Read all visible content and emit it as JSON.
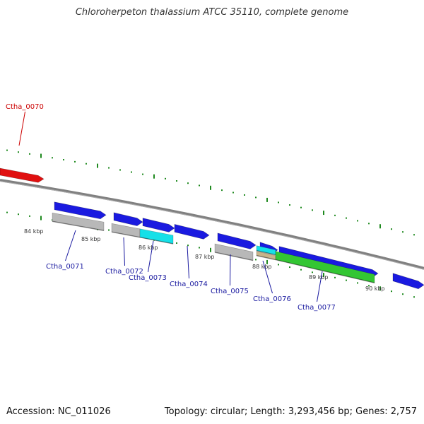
{
  "header": {
    "title": "Chloroherpeton thalassium ATCC 35110, complete genome"
  },
  "footer": {
    "accession": "Accession: NC_011026",
    "summary": "Topology: circular; Length: 3,293,456 bp; Genes: 2,757"
  },
  "colors": {
    "backbone": "#808080",
    "tick": "#1f8a1f",
    "forward_gene": "#1a1ae0",
    "reverse_gene": "#e01010",
    "cds_gray": "#b8b8b8",
    "cds_cyan": "#16e0e8",
    "cds_green": "#33c633",
    "cds_tan": "#c8b48a",
    "label_blue": "#1a1aa0",
    "label_red": "#cc0000"
  },
  "genome_map": {
    "kbp_labels": [
      "84 kbp",
      "85 kbp",
      "86 kbp",
      "87 kbp",
      "88 kbp",
      "89 kbp",
      "90 kbp"
    ],
    "gene_labels": [
      {
        "name": "Ctha_0070",
        "strand": "reverse"
      },
      {
        "name": "Ctha_0071",
        "strand": "forward"
      },
      {
        "name": "Ctha_0072",
        "strand": "forward"
      },
      {
        "name": "Ctha_0073",
        "strand": "forward"
      },
      {
        "name": "Ctha_0074",
        "strand": "forward"
      },
      {
        "name": "Ctha_0075",
        "strand": "forward"
      },
      {
        "name": "Ctha_0076",
        "strand": "forward"
      },
      {
        "name": "Ctha_0077",
        "strand": "forward"
      }
    ]
  }
}
